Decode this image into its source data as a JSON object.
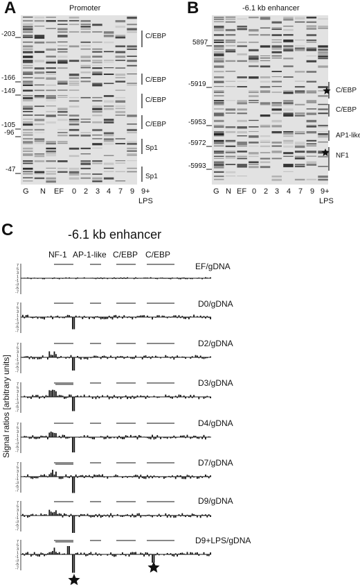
{
  "panelA": {
    "letter": "A",
    "title": "Promoter",
    "positions": [
      "-203",
      "-166",
      "-149",
      "-105",
      "-96",
      "-47"
    ],
    "sites": [
      "C/EBP",
      "C/EBP",
      "C/EBP",
      "C/EBP",
      "Sp1",
      "Sp1"
    ],
    "lanes": [
      "G",
      "N",
      "EF",
      "0",
      "2",
      "3",
      "4",
      "7",
      "9",
      "9+"
    ],
    "lane_extra": "LPS"
  },
  "panelB": {
    "letter": "B",
    "title": "-6.1 kb enhancer",
    "positions": [
      "5897",
      "-5919",
      "-5953",
      "-5972",
      "-5993"
    ],
    "sites": [
      "C/EBP",
      "C/EBP",
      "AP1-like",
      "NF1"
    ],
    "lanes": [
      "G",
      "N",
      "EF",
      "0",
      "2",
      "3",
      "4",
      "7",
      "9",
      "9+"
    ],
    "lane_extra": "LPS"
  },
  "panelC": {
    "letter": "C",
    "title": "-6.1 kb enhancer",
    "ylabel": "Signal ratios [arbitrary units]",
    "sites": [
      "NF-1",
      "AP-1-like",
      "C/EBP",
      "C/EBP"
    ],
    "ticks": [
      "7",
      "5",
      "3",
      "1",
      "-1",
      "-3",
      "-5",
      "-7"
    ],
    "tracks": [
      "EF/gDNA",
      "D0/gDNA",
      "D2/gDNA",
      "D3/gDNA",
      "D4/gDNA",
      "D7/gDNA",
      "D9/gDNA",
      "D9+LPS/gDNA"
    ]
  }
}
